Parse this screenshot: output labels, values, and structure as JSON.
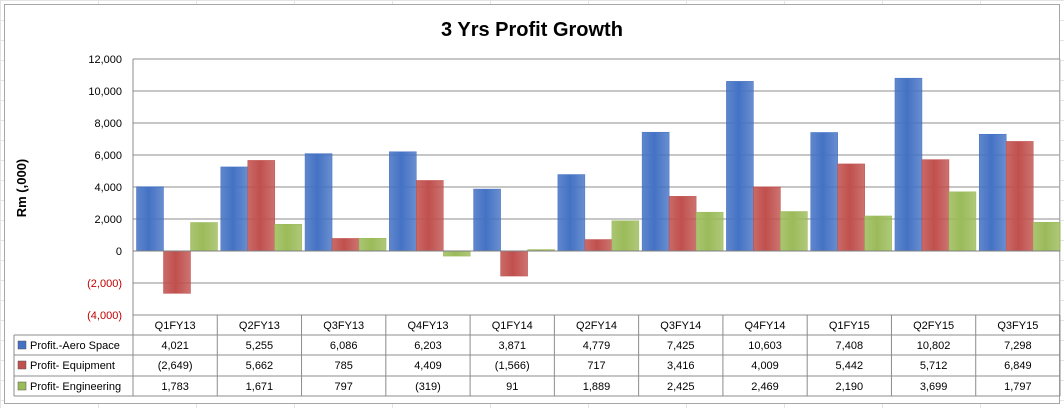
{
  "chart_data": {
    "type": "bar",
    "title": "3 Yrs Profit Growth",
    "ylabel": "Rm (,000)",
    "xlabel": "",
    "ylim": [
      -4000,
      12000
    ],
    "yticks": [
      12000,
      10000,
      8000,
      6000,
      4000,
      2000,
      0,
      -2000,
      -4000
    ],
    "ytick_labels": [
      "12,000",
      "10,000",
      "8,000",
      "6,000",
      "4,000",
      "2,000",
      "0",
      "(2,000)",
      "(4,000)"
    ],
    "grid": true,
    "legend": "data-table",
    "categories": [
      "Q1FY13",
      "Q2FY13",
      "Q3FY13",
      "Q4FY13",
      "Q1FY14",
      "Q2FY14",
      "Q3FY14",
      "Q4FY14",
      "Q1FY15",
      "Q2FY15",
      "Q3FY15"
    ],
    "series": [
      {
        "name": "Profit.-Aero Space",
        "color": "#4472c4",
        "values": [
          4021,
          5255,
          6086,
          6203,
          3871,
          4779,
          7425,
          10603,
          7408,
          10802,
          7298
        ],
        "labels": [
          "4,021",
          "5,255",
          "6,086",
          "6,203",
          "3,871",
          "4,779",
          "7,425",
          "10,603",
          "7,408",
          "10,802",
          "7,298"
        ]
      },
      {
        "name": "Profit- Equipment",
        "color": "#c0504d",
        "values": [
          -2649,
          5662,
          785,
          4409,
          -1566,
          717,
          3416,
          4009,
          5442,
          5712,
          6849
        ],
        "labels": [
          "(2,649)",
          "5,662",
          "785",
          "4,409",
          "(1,566)",
          "717",
          "3,416",
          "4,009",
          "5,442",
          "5,712",
          "6,849"
        ]
      },
      {
        "name": "Profit- Engineering",
        "color": "#9bbb59",
        "values": [
          1783,
          1671,
          797,
          -319,
          91,
          1889,
          2425,
          2469,
          2190,
          3699,
          1797
        ],
        "labels": [
          "1,783",
          "1,671",
          "797",
          "(319)",
          "91",
          "1,889",
          "2,425",
          "2,469",
          "2,190",
          "3,699",
          "1,797"
        ]
      }
    ],
    "negative_tick_color": "#c00000"
  }
}
